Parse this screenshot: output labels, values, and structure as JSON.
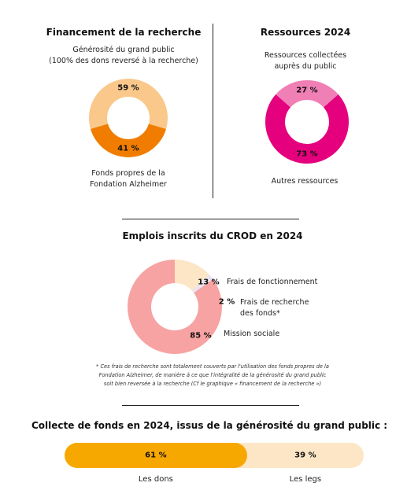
{
  "chart_data": [
    {
      "type": "donut",
      "title": "Financement de la recherche",
      "categories": [
        "Générosité du grand public\n(100% des dons reversé à la recherche)",
        "Fonds propres de la\nFondation Alzheimer"
      ],
      "values": [
        59,
        41
      ],
      "value_labels": [
        "59 %",
        "41 %"
      ],
      "colors": [
        "#f9c88a",
        "#f07d00"
      ]
    },
    {
      "type": "donut",
      "title": "Ressources 2024",
      "categories": [
        "Ressources collectées auprès du public",
        "Autres ressources"
      ],
      "values": [
        27,
        73
      ],
      "value_labels": [
        "27 %",
        "73 %"
      ],
      "colors": [
        "#f07fb5",
        "#e5007d"
      ]
    },
    {
      "type": "donut",
      "title": "Emplois inscrits du CROD en 2024",
      "categories": [
        "Frais de fonctionnement",
        "Frais de recherche\ndes fonds*",
        "Mission sociale"
      ],
      "values": [
        13,
        2,
        85
      ],
      "value_labels": [
        "13 %",
        "2 %",
        "85 %"
      ],
      "colors": [
        "#fde6c6",
        "#ebe3ef",
        "#f7a3a3"
      ],
      "note": "* Ces frais de recherche sont totalement couverts par l'utilisation des fonds propres de la Fondation Alzheimer, de manière à ce que l'intégralité de la générosité du grand public soit bien reversée à la recherche (Cf le graphique « financement de la recherche »)"
    },
    {
      "type": "stacked_bar",
      "title": "Collecte de fonds en 2024, issus de la générosité du grand public :",
      "categories": [
        "Les dons",
        "Les legs"
      ],
      "values": [
        61,
        39
      ],
      "value_labels": [
        "61 %",
        "39 %"
      ],
      "colors": [
        "#f7a800",
        "#fde6c6"
      ]
    }
  ]
}
